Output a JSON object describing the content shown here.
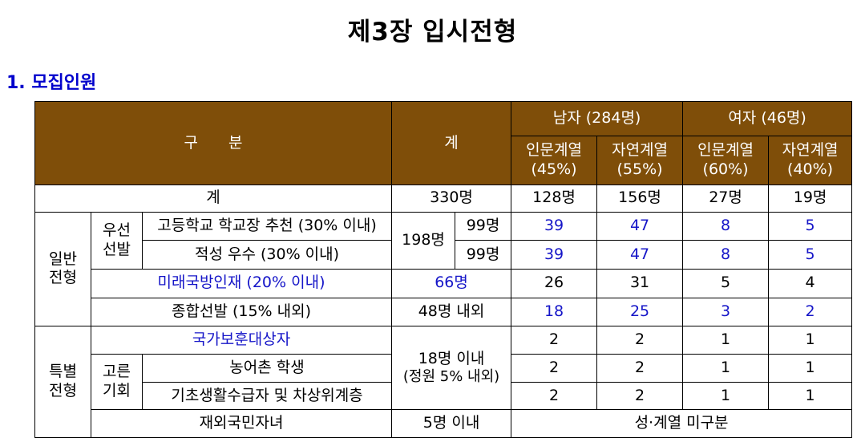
{
  "title": "제3장 입시전형",
  "section": "1. 모집인원",
  "header": {
    "category": "구　　분",
    "total": "계",
    "male": "남자 (284명)",
    "female": "여자 (46명)",
    "male_hum": "인문계열",
    "male_hum_pct": "(45%)",
    "male_nat": "자연계열",
    "male_nat_pct": "(55%)",
    "fem_hum": "인문계열",
    "fem_hum_pct": "(60%)",
    "fem_nat": "자연계열",
    "fem_nat_pct": "(40%)"
  },
  "total_row": {
    "label": "계",
    "total": "330명",
    "v": [
      "128명",
      "156명",
      "27명",
      "19명"
    ]
  },
  "general": {
    "label_line1": "일반",
    "label_line2": "전형",
    "priority_line1": "우선",
    "priority_line2": "선발",
    "priority_sum": "198명",
    "rows": [
      {
        "label": "고등학교 학교장 추천 (30% 이내)",
        "count": "99명",
        "v": [
          "39",
          "47",
          "8",
          "5"
        ]
      },
      {
        "label": "적성 우수 (30% 이내)",
        "count": "99명",
        "v": [
          "39",
          "47",
          "8",
          "5"
        ]
      },
      {
        "label": "미래국방인재 (20% 이내)",
        "count": "66명",
        "v": [
          "26",
          "31",
          "5",
          "4"
        ]
      }
    ],
    "comprehensive": {
      "label": "종합선발 (15% 내외)",
      "count": "48명 내외",
      "v": [
        "18",
        "25",
        "3",
        "2"
      ]
    }
  },
  "special": {
    "label_line1": "특별",
    "label_line2": "전형",
    "veterans": {
      "label": "국가보훈대상자",
      "v": [
        "2",
        "2",
        "1",
        "1"
      ]
    },
    "equal_line1": "고른",
    "equal_line2": "기회",
    "rural": {
      "label": "농어촌 학생",
      "v": [
        "2",
        "2",
        "1",
        "1"
      ]
    },
    "basic": {
      "label": "기초생활수급자 및 차상위계층",
      "v": [
        "2",
        "2",
        "1",
        "1"
      ]
    },
    "count_line1": "18명 이내",
    "count_line2": "(정원 5% 내외)",
    "overseas": {
      "label": "재외국민자녀",
      "count": "5명 이내",
      "note": "성·계열 미구분"
    }
  }
}
